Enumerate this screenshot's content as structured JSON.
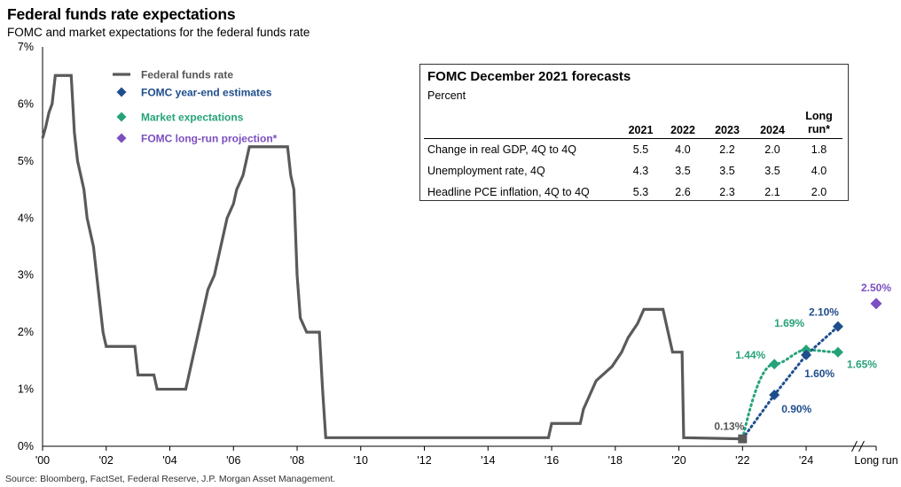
{
  "title": "Federal funds rate expectations",
  "subtitle": "FOMC and market expectations for the federal funds rate",
  "source": "Source: Bloomberg, FactSet, Federal Reserve, J.P. Morgan Asset Management.",
  "colors": {
    "fed_funds": "#5a5a5a",
    "fomc": "#1f4e8c",
    "market": "#26a27a",
    "long_run": "#7b4fc0"
  },
  "chart_data": {
    "type": "line",
    "xlabel": "",
    "ylabel": "",
    "ylim": [
      0,
      7
    ],
    "xlim": [
      2000,
      2026.2
    ],
    "y_ticks": [
      "0%",
      "1%",
      "2%",
      "3%",
      "4%",
      "5%",
      "6%",
      "7%"
    ],
    "x_ticks": [
      {
        "x": 2000,
        "label": "'00"
      },
      {
        "x": 2002,
        "label": "'02"
      },
      {
        "x": 2004,
        "label": "'04"
      },
      {
        "x": 2006,
        "label": "'06"
      },
      {
        "x": 2008,
        "label": "'08"
      },
      {
        "x": 2010,
        "label": "'10"
      },
      {
        "x": 2012,
        "label": "'12"
      },
      {
        "x": 2014,
        "label": "'14"
      },
      {
        "x": 2016,
        "label": "'16"
      },
      {
        "x": 2018,
        "label": "'18"
      },
      {
        "x": 2020,
        "label": "'20"
      },
      {
        "x": 2022,
        "label": "'22"
      },
      {
        "x": 2024,
        "label": "'24"
      },
      {
        "x": 2026.2,
        "label": "Long run"
      }
    ],
    "legend": [
      {
        "name": "Federal funds rate",
        "marker": "line",
        "color": "#5a5a5a"
      },
      {
        "name": "FOMC year-end estimates",
        "marker": "diamond",
        "color": "#1f4e8c"
      },
      {
        "name": "Market expectations",
        "marker": "diamond",
        "color": "#26a27a"
      },
      {
        "name": "FOMC long-run projection*",
        "marker": "diamond",
        "color": "#7b4fc0"
      }
    ],
    "legend_position": "top-left",
    "series": [
      {
        "name": "Federal funds rate",
        "points": [
          [
            2000.0,
            5.4
          ],
          [
            2000.1,
            5.6
          ],
          [
            2000.2,
            5.85
          ],
          [
            2000.3,
            6.0
          ],
          [
            2000.4,
            6.5
          ],
          [
            2000.9,
            6.5
          ],
          [
            2001.0,
            5.5
          ],
          [
            2001.1,
            5.0
          ],
          [
            2001.3,
            4.5
          ],
          [
            2001.4,
            4.0
          ],
          [
            2001.5,
            3.75
          ],
          [
            2001.6,
            3.5
          ],
          [
            2001.7,
            3.0
          ],
          [
            2001.8,
            2.5
          ],
          [
            2001.9,
            2.0
          ],
          [
            2002.0,
            1.75
          ],
          [
            2002.9,
            1.75
          ],
          [
            2003.0,
            1.25
          ],
          [
            2003.5,
            1.25
          ],
          [
            2003.6,
            1.0
          ],
          [
            2004.5,
            1.0
          ],
          [
            2004.6,
            1.25
          ],
          [
            2004.7,
            1.5
          ],
          [
            2004.8,
            1.75
          ],
          [
            2004.9,
            2.0
          ],
          [
            2005.0,
            2.25
          ],
          [
            2005.1,
            2.5
          ],
          [
            2005.2,
            2.75
          ],
          [
            2005.4,
            3.0
          ],
          [
            2005.5,
            3.25
          ],
          [
            2005.6,
            3.5
          ],
          [
            2005.7,
            3.75
          ],
          [
            2005.8,
            4.0
          ],
          [
            2006.0,
            4.25
          ],
          [
            2006.1,
            4.5
          ],
          [
            2006.3,
            4.75
          ],
          [
            2006.5,
            5.25
          ],
          [
            2007.7,
            5.25
          ],
          [
            2007.8,
            4.75
          ],
          [
            2007.9,
            4.5
          ],
          [
            2008.0,
            3.0
          ],
          [
            2008.1,
            2.25
          ],
          [
            2008.3,
            2.0
          ],
          [
            2008.7,
            2.0
          ],
          [
            2008.8,
            1.0
          ],
          [
            2008.9,
            0.15
          ],
          [
            2015.9,
            0.15
          ],
          [
            2016.0,
            0.4
          ],
          [
            2016.9,
            0.4
          ],
          [
            2017.0,
            0.65
          ],
          [
            2017.2,
            0.9
          ],
          [
            2017.4,
            1.15
          ],
          [
            2017.9,
            1.4
          ],
          [
            2018.2,
            1.65
          ],
          [
            2018.4,
            1.9
          ],
          [
            2018.7,
            2.15
          ],
          [
            2018.9,
            2.4
          ],
          [
            2019.5,
            2.4
          ],
          [
            2019.6,
            2.15
          ],
          [
            2019.7,
            1.9
          ],
          [
            2019.8,
            1.65
          ],
          [
            2020.1,
            1.65
          ],
          [
            2020.15,
            0.15
          ],
          [
            2022.0,
            0.13
          ]
        ]
      },
      {
        "name": "FOMC year-end estimates",
        "points": [
          [
            2022.0,
            0.13
          ],
          [
            2023.0,
            0.9
          ],
          [
            2024.0,
            1.6
          ],
          [
            2025.0,
            2.1
          ]
        ],
        "labels": [
          "",
          "0.90%",
          "1.60%",
          "2.10%"
        ]
      },
      {
        "name": "Market expectations",
        "points": [
          [
            2022.0,
            0.13
          ],
          [
            2023.0,
            1.44
          ],
          [
            2024.0,
            1.69
          ],
          [
            2025.0,
            1.65
          ]
        ],
        "labels": [
          "0.13%",
          "1.44%",
          "1.69%",
          "1.65%"
        ]
      },
      {
        "name": "FOMC long-run projection*",
        "points": [
          [
            2026.2,
            2.5
          ]
        ],
        "labels": [
          "2.50%"
        ]
      }
    ]
  },
  "forecast_table": {
    "title": "FOMC December 2021 forecasts",
    "subtitle": "Percent",
    "headers": [
      "",
      "2021",
      "2022",
      "2023",
      "2024",
      "Long run*"
    ],
    "rows": [
      {
        "label": "Change in real GDP, 4Q to 4Q",
        "values": [
          "5.5",
          "4.0",
          "2.2",
          "2.0",
          "1.8"
        ]
      },
      {
        "label": "Unemployment rate, 4Q",
        "values": [
          "4.3",
          "3.5",
          "3.5",
          "3.5",
          "4.0"
        ]
      },
      {
        "label": "Headline PCE inflation, 4Q to 4Q",
        "values": [
          "5.3",
          "2.6",
          "2.3",
          "2.1",
          "2.0"
        ]
      }
    ]
  }
}
